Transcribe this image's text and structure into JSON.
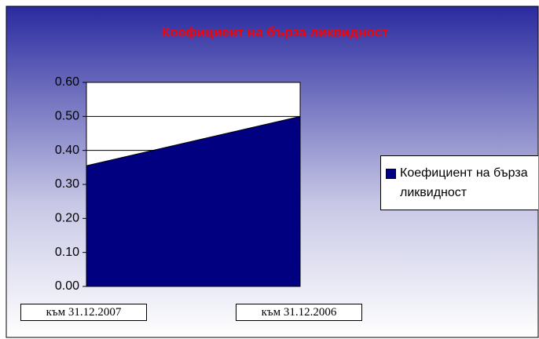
{
  "chart_data": {
    "type": "area",
    "title": "Коефициент на бърза ликвидност",
    "categories": [
      "към 31.12.2007",
      "към 31.12.2006"
    ],
    "series": [
      {
        "name": "Коефициент на бърза ликвидност",
        "color": "#000080",
        "values": [
          0.355,
          0.5
        ]
      }
    ],
    "ylim": [
      0,
      0.6
    ],
    "yticks": [
      {
        "value": 0,
        "label": "0.00"
      },
      {
        "value": 0.1,
        "label": "0.10"
      },
      {
        "value": 0.2,
        "label": "0.20"
      },
      {
        "value": 0.3,
        "label": "0.30"
      },
      {
        "value": 0.4,
        "label": "0.40"
      },
      {
        "value": 0.5,
        "label": "0.50"
      },
      {
        "value": 0.6,
        "label": "0.60"
      }
    ],
    "grid": true,
    "legend": "right"
  }
}
